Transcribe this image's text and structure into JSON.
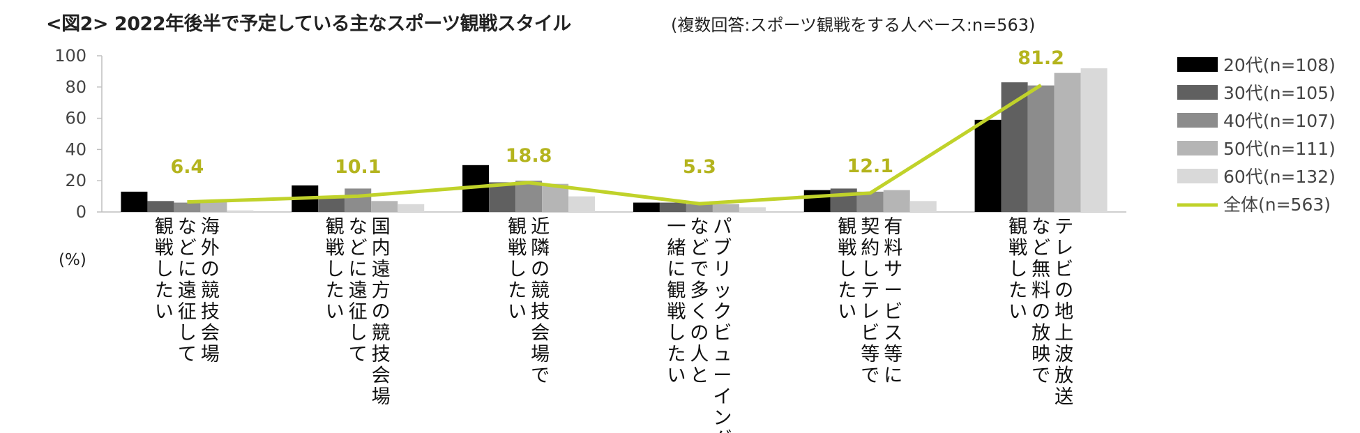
{
  "title": "<図2> 2022年後半で予定している主なスポーツ観戦スタイル",
  "subtitle": "(複数回答:スポーツ観戦をする人ベース:n=563)",
  "unit_label": "(%)",
  "chart_data": {
    "type": "bar",
    "ylim": [
      0,
      100
    ],
    "y_ticks": [
      0,
      20,
      40,
      60,
      80,
      100
    ],
    "categories": [
      "海外の競技会場など に遠征して観戦したい",
      "国内遠方の競技会場など に遠征して観戦したい",
      "近隣の競技会場で観戦したい",
      "パブリックビューイング などで多くの人と一緒に観戦したい",
      "有料サービス等に契約しテレビ等で観戦したい",
      "テレビの地上波放送など無料の放映で観戦したい"
    ],
    "category_lines": [
      [
        "海外の競技会場",
        "などに遠征して",
        "観戦したい"
      ],
      [
        "国内遠方の競技会場",
        "などに遠征して",
        "観戦したい"
      ],
      [
        "近隣の競技会場で",
        "観戦したい"
      ],
      [
        "パブリックビューイング",
        "などで多くの人と",
        "一緒に観戦したい"
      ],
      [
        "有料サービス等に",
        "契約しテレビ等で",
        "観戦したい"
      ],
      [
        "テレビの地上波放送",
        "など無料の放映で",
        "観戦したい"
      ]
    ],
    "series": [
      {
        "name": "20代(n=108)",
        "color": "#000000",
        "values": [
          13,
          17,
          30,
          6,
          14,
          59
        ]
      },
      {
        "name": "30代(n=105)",
        "color": "#606060",
        "values": [
          7,
          10,
          19,
          6,
          15,
          83
        ]
      },
      {
        "name": "40代(n=107)",
        "color": "#8c8c8c",
        "values": [
          6,
          15,
          20,
          5,
          13,
          81
        ]
      },
      {
        "name": "50代(n=111)",
        "color": "#b5b5b5",
        "values": [
          7,
          7,
          18,
          5,
          14,
          89
        ]
      },
      {
        "name": "60代(n=132)",
        "color": "#d9d9d9",
        "values": [
          1,
          5,
          10,
          3,
          7,
          92
        ]
      }
    ],
    "line_series": {
      "name": "全体(n=563)",
      "color": "#c0d22a",
      "values": [
        6.4,
        10.1,
        18.8,
        5.3,
        12.1,
        81.2
      ]
    },
    "data_labels": [
      "6.4",
      "10.1",
      "18.8",
      "5.3",
      "12.1",
      "81.2"
    ],
    "legend_position": "right",
    "grid": false
  }
}
